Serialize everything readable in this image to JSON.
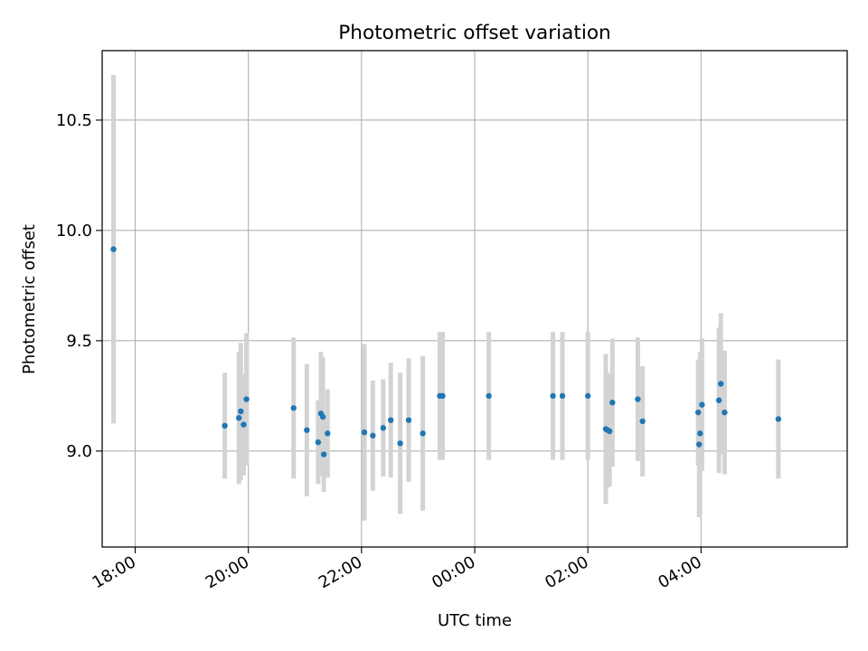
{
  "chart_data": {
    "type": "scatter",
    "title": "Photometric offset variation",
    "xlabel": "UTC time",
    "ylabel": "Photometric offset",
    "x_range": [
      "17:25",
      "06:35"
    ],
    "ylim": [
      8.565,
      10.815
    ],
    "x_ticks": [
      "18:00",
      "20:00",
      "22:00",
      "00:00",
      "02:00",
      "04:00"
    ],
    "y_ticks": [
      "9.0",
      "9.5",
      "10.0",
      "10.5"
    ],
    "grid": true,
    "point_color": "#1f77b4",
    "errorbar_color": "#d3d3d3",
    "series": [
      {
        "points": [
          {
            "x": "17:37",
            "y": 9.915,
            "err": 0.79
          },
          {
            "x": "19:35",
            "y": 9.115,
            "err": 0.24
          },
          {
            "x": "19:50",
            "y": 9.15,
            "err": 0.3
          },
          {
            "x": "19:52",
            "y": 9.18,
            "err": 0.31
          },
          {
            "x": "19:55",
            "y": 9.12,
            "err": 0.23
          },
          {
            "x": "19:58",
            "y": 9.235,
            "err": 0.3
          },
          {
            "x": "20:48",
            "y": 9.195,
            "err": 0.32
          },
          {
            "x": "21:02",
            "y": 9.095,
            "err": 0.3
          },
          {
            "x": "21:14",
            "y": 9.04,
            "err": 0.19
          },
          {
            "x": "21:17",
            "y": 9.17,
            "err": 0.28
          },
          {
            "x": "21:19",
            "y": 9.155,
            "err": 0.27
          },
          {
            "x": "21:20",
            "y": 8.985,
            "err": 0.17
          },
          {
            "x": "21:24",
            "y": 9.08,
            "err": 0.2
          },
          {
            "x": "22:03",
            "y": 9.085,
            "err": 0.4
          },
          {
            "x": "22:12",
            "y": 9.07,
            "err": 0.25
          },
          {
            "x": "22:23",
            "y": 9.105,
            "err": 0.22
          },
          {
            "x": "22:31",
            "y": 9.14,
            "err": 0.26
          },
          {
            "x": "22:41",
            "y": 9.035,
            "err": 0.32
          },
          {
            "x": "22:50",
            "y": 9.14,
            "err": 0.28
          },
          {
            "x": "23:05",
            "y": 9.08,
            "err": 0.35
          },
          {
            "x": "23:23",
            "y": 9.25,
            "err": 0.29
          },
          {
            "x": "23:26",
            "y": 9.25,
            "err": 0.29
          },
          {
            "x": "00:15",
            "y": 9.25,
            "err": 0.29
          },
          {
            "x": "01:23",
            "y": 9.25,
            "err": 0.29
          },
          {
            "x": "01:33",
            "y": 9.25,
            "err": 0.29
          },
          {
            "x": "02:00",
            "y": 9.25,
            "err": 0.29
          },
          {
            "x": "02:19",
            "y": 9.1,
            "err": 0.34
          },
          {
            "x": "02:21",
            "y": 9.095,
            "err": 0.26
          },
          {
            "x": "02:23",
            "y": 9.09,
            "err": 0.25
          },
          {
            "x": "02:26",
            "y": 9.22,
            "err": 0.29
          },
          {
            "x": "02:53",
            "y": 9.235,
            "err": 0.28
          },
          {
            "x": "02:58",
            "y": 9.135,
            "err": 0.25
          },
          {
            "x": "03:57",
            "y": 9.175,
            "err": 0.24
          },
          {
            "x": "03:58",
            "y": 9.03,
            "err": 0.33
          },
          {
            "x": "03:59",
            "y": 9.08,
            "err": 0.37
          },
          {
            "x": "04:01",
            "y": 9.21,
            "err": 0.3
          },
          {
            "x": "04:19",
            "y": 9.23,
            "err": 0.33
          },
          {
            "x": "04:21",
            "y": 9.305,
            "err": 0.32
          },
          {
            "x": "04:25",
            "y": 9.175,
            "err": 0.28
          },
          {
            "x": "05:22",
            "y": 9.145,
            "err": 0.27
          }
        ]
      }
    ]
  }
}
